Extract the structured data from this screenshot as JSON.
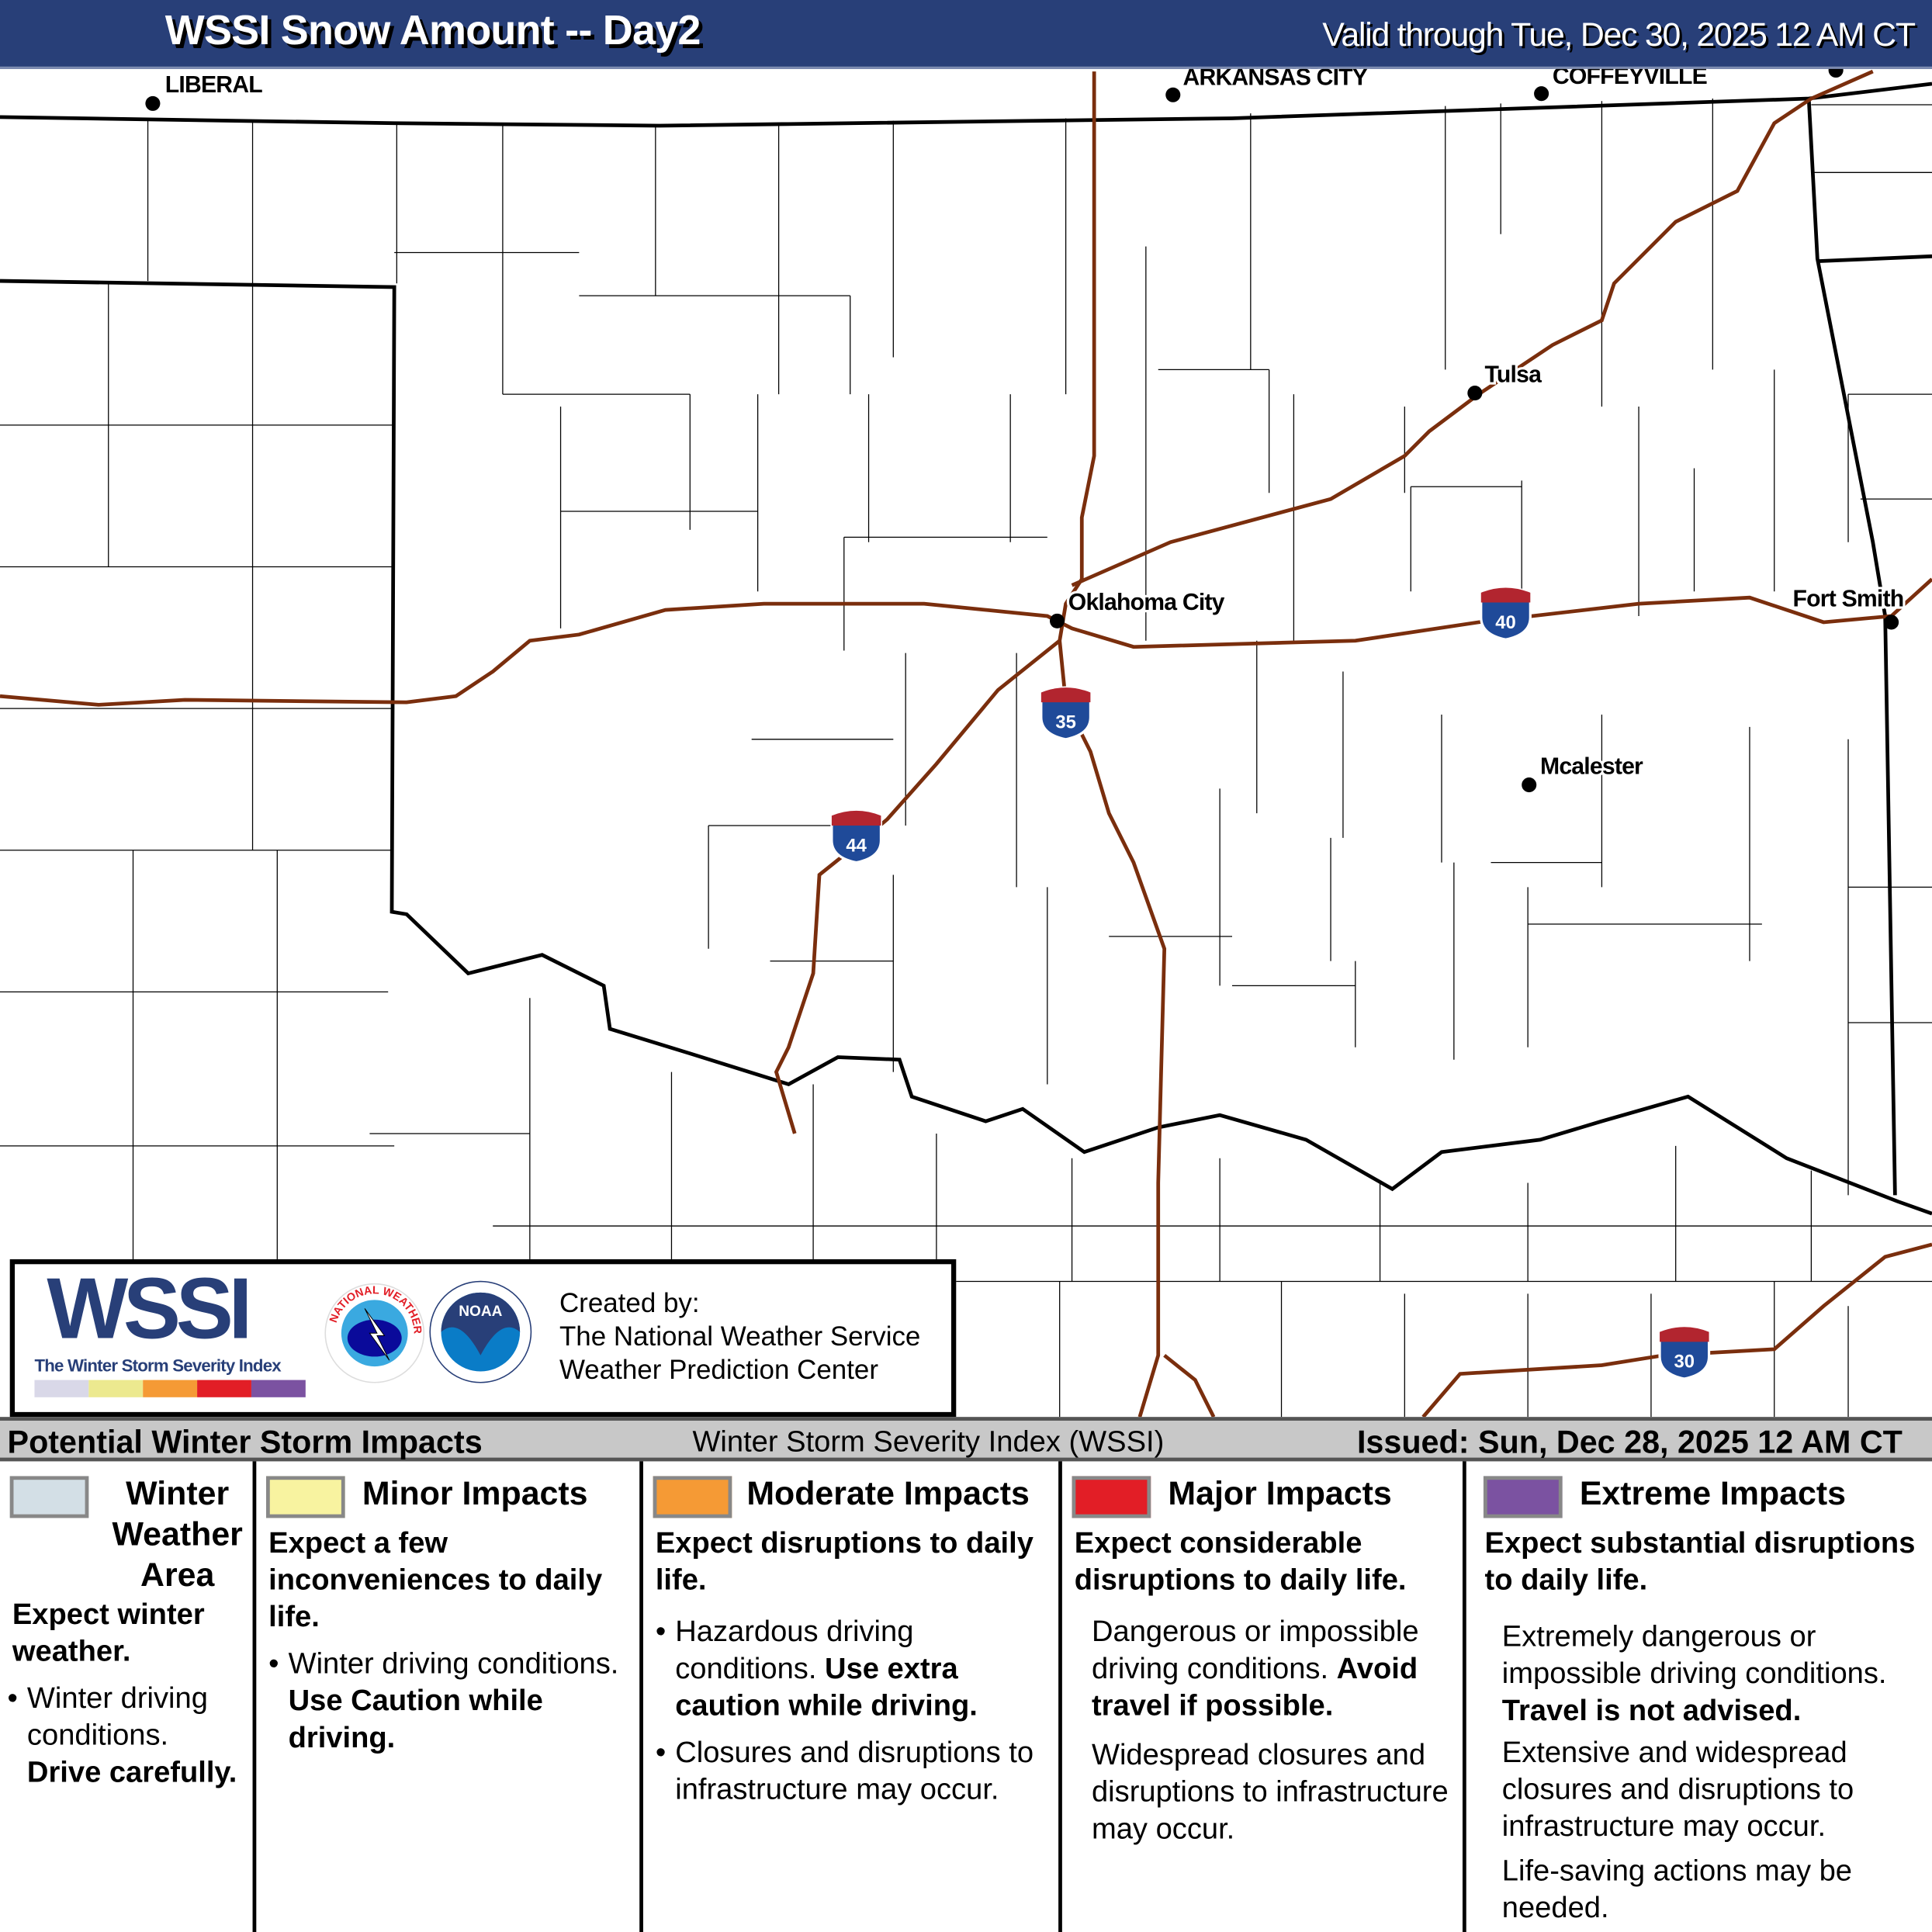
{
  "header": {
    "title": "WSSI Snow Amount -- Day2",
    "valid": "Valid through Tue, Dec 30, 2025 12 AM CT"
  },
  "map": {
    "cities": [
      "LIBERAL",
      "ARKANSAS CITY",
      "COFFEYVILLE",
      "Tulsa",
      "Oklahoma City",
      "Fort Smith",
      "Mcalester"
    ],
    "interstates": [
      "40",
      "35",
      "44",
      "30"
    ],
    "colors": {
      "state_border": "#000000",
      "county_line": "#000000",
      "highway": "#7a2e0d",
      "shield_blue": "#1f4a99",
      "shield_red": "#b2252f"
    }
  },
  "logo": {
    "wssi": "WSSI",
    "wssi_subtitle": "The Winter Storm Severity Index",
    "wssi_colors": [
      "#d9d8e8",
      "#ece98f",
      "#f59a35",
      "#e21e26",
      "#7b52a1"
    ],
    "nws": "NATIONAL WEATHER SERVICE",
    "noaa": "NOAA",
    "created_by": "Created by:",
    "org1": "The National Weather Service",
    "org2": "Weather Prediction Center"
  },
  "impacts": {
    "title": "Potential Winter Storm Impacts",
    "index_name": "Winter Storm Severity Index (WSSI)",
    "issued": "Issued: Sun, Dec 28, 2025 12 AM CT",
    "categories": [
      {
        "name": "Winter Weather Area",
        "color": "#d3dfe6",
        "summary": "Expect winter weather.",
        "bullet": "Winter driving conditions.",
        "bullet_bold": "Drive carefully."
      },
      {
        "name": "Minor Impacts",
        "color": "#f8f3a0",
        "summary": "Expect a few inconveniences to daily life.",
        "bullet": "Winter driving conditions.",
        "bullet_bold": "Use Caution while driving."
      },
      {
        "name": "Moderate Impacts",
        "color": "#f59a35",
        "summary": "Expect disruptions to daily life.",
        "bullet": "Hazardous driving conditions.",
        "bullet_bold": "Use extra caution while driving.",
        "bullet2": "Closures and disruptions to infrastructure may occur."
      },
      {
        "name": "Major Impacts",
        "color": "#e21e26",
        "summary": "Expect considerable disruptions to daily life.",
        "bullet": "Dangerous or impossible driving conditions.",
        "bullet_bold": "Avoid travel if possible.",
        "bullet2": "Widespread closures and disruptions to infrastructure may occur."
      },
      {
        "name": "Extreme Impacts",
        "color": "#7b52a1",
        "summary": "Expect substantial disruptions to daily life.",
        "bullet": "Extremely dangerous or impossible driving conditions.",
        "bullet_bold": "Travel is not advised.",
        "bullet2": "Extensive and widespread closures and disruptions to infrastructure may occur.",
        "bullet3": "Life-saving actions may be needed."
      }
    ]
  }
}
